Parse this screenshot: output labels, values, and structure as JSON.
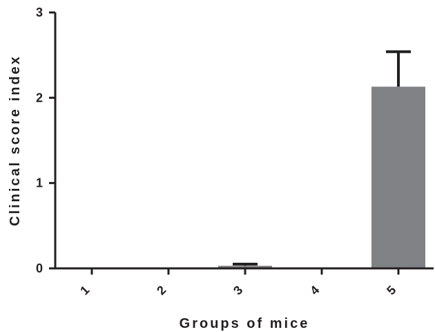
{
  "chart_data": {
    "type": "bar",
    "title": "",
    "xlabel": "Groups of mice",
    "ylabel": "Clinical score index",
    "categories": [
      "1",
      "2",
      "3",
      "4",
      "5"
    ],
    "values": [
      0,
      0,
      0.03,
      0,
      2.13
    ],
    "errors": [
      0,
      0,
      0.02,
      0,
      0.41
    ],
    "ylim": [
      0,
      3
    ],
    "yticks": [
      "0",
      "1",
      "2",
      "3"
    ],
    "grid": false,
    "bar_color": "#808285",
    "axis_color": "#231f20"
  }
}
